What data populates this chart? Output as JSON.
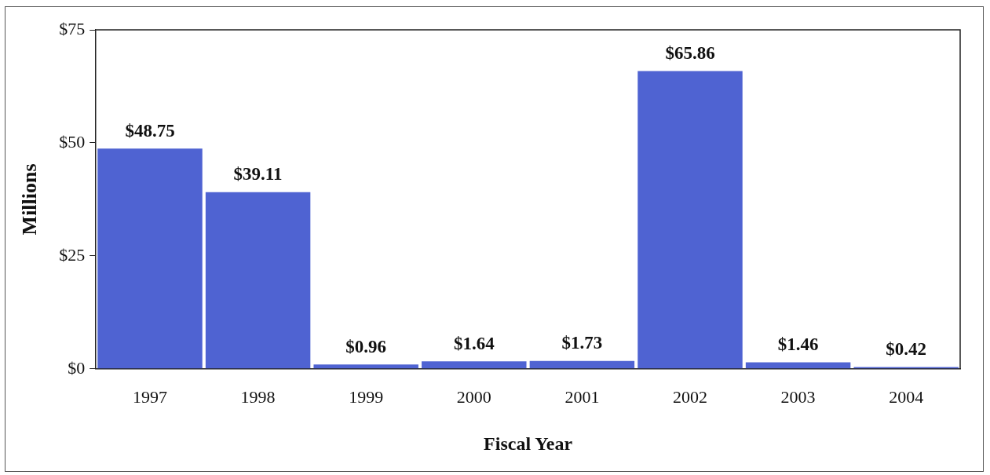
{
  "chart_data": {
    "type": "bar",
    "xlabel": "Fiscal Year",
    "ylabel": "Millions",
    "categories": [
      "1997",
      "1998",
      "1999",
      "2000",
      "2001",
      "2002",
      "2003",
      "2004"
    ],
    "values": [
      48.75,
      39.11,
      0.96,
      1.64,
      1.73,
      65.86,
      1.46,
      0.42
    ],
    "value_labels": [
      "$48.75",
      "$39.11",
      "$0.96",
      "$1.64",
      "$1.73",
      "$65.86",
      "$1.46",
      "$0.42"
    ],
    "color": "#4f63d2",
    "ylim": [
      0,
      75
    ],
    "yticks": [
      {
        "value": 0,
        "label": "$0"
      },
      {
        "value": 25,
        "label": "$25"
      },
      {
        "value": 50,
        "label": "$50"
      },
      {
        "value": 75,
        "label": "$75"
      }
    ],
    "grid": false,
    "legend": false
  }
}
